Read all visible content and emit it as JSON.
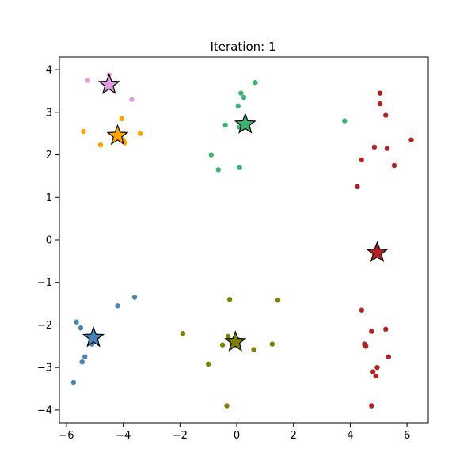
{
  "chart_data": {
    "type": "scatter",
    "title": "Iteration: 1",
    "xlim": [
      -6.25,
      6.75
    ],
    "ylim": [
      -4.3,
      4.3
    ],
    "xticks": [
      -6,
      -4,
      -2,
      0,
      2,
      4,
      6
    ],
    "yticks": [
      -4,
      -3,
      -2,
      -1,
      0,
      1,
      2,
      3,
      4
    ],
    "xtick_labels": [
      "−6",
      "−4",
      "−2",
      "0",
      "2",
      "4",
      "6"
    ],
    "ytick_labels": [
      "−4",
      "−3",
      "−2",
      "−1",
      "0",
      "1",
      "2",
      "3",
      "4"
    ],
    "clusters": [
      {
        "color": "#dda0dd",
        "centroid": [
          -4.5,
          3.65
        ],
        "points": [
          [
            -5.25,
            3.75
          ],
          [
            -4.5,
            3.88
          ],
          [
            -3.7,
            3.3
          ]
        ]
      },
      {
        "color": "#ffa500",
        "centroid": [
          -4.2,
          2.45
        ],
        "points": [
          [
            -5.4,
            2.55
          ],
          [
            -4.8,
            2.23
          ],
          [
            -4.05,
            2.85
          ],
          [
            -4.0,
            2.35
          ],
          [
            -3.95,
            2.28
          ],
          [
            -3.4,
            2.5
          ],
          [
            -4.15,
            2.4
          ]
        ]
      },
      {
        "color": "#3cb371",
        "centroid": [
          0.3,
          2.72
        ],
        "points": [
          [
            -0.9,
            2.0
          ],
          [
            -0.65,
            1.65
          ],
          [
            -0.4,
            2.7
          ],
          [
            0.05,
            3.15
          ],
          [
            0.1,
            2.65
          ],
          [
            0.15,
            3.45
          ],
          [
            0.25,
            3.35
          ],
          [
            0.65,
            3.7
          ],
          [
            0.1,
            1.7
          ],
          [
            3.8,
            2.8
          ]
        ]
      },
      {
        "color": "#b22222",
        "centroid": [
          4.95,
          -0.3
        ],
        "points": [
          [
            5.05,
            3.45
          ],
          [
            5.05,
            3.2
          ],
          [
            5.25,
            2.93
          ],
          [
            4.85,
            2.18
          ],
          [
            5.3,
            2.15
          ],
          [
            4.4,
            1.88
          ],
          [
            5.55,
            1.75
          ],
          [
            4.25,
            1.25
          ],
          [
            6.15,
            2.35
          ],
          [
            4.4,
            -1.65
          ],
          [
            4.75,
            -2.15
          ],
          [
            5.25,
            -2.1
          ],
          [
            4.5,
            -2.45
          ],
          [
            4.55,
            -2.5
          ],
          [
            5.35,
            -2.75
          ],
          [
            4.95,
            -3.0
          ],
          [
            4.8,
            -3.1
          ],
          [
            4.9,
            -3.2
          ],
          [
            4.75,
            -3.9
          ]
        ]
      },
      {
        "color": "#4682b4",
        "centroid": [
          -5.05,
          -2.3
        ],
        "points": [
          [
            -4.2,
            -1.55
          ],
          [
            -3.6,
            -1.35
          ],
          [
            -5.65,
            -1.93
          ],
          [
            -5.5,
            -2.07
          ],
          [
            -5.1,
            -2.45
          ],
          [
            -5.35,
            -2.75
          ],
          [
            -5.45,
            -2.87
          ],
          [
            -5.75,
            -3.35
          ]
        ]
      },
      {
        "color": "#808000",
        "centroid": [
          -0.05,
          -2.4
        ],
        "points": [
          [
            -0.25,
            -1.4
          ],
          [
            1.45,
            -1.42
          ],
          [
            -1.9,
            -2.2
          ],
          [
            -0.3,
            -2.27
          ],
          [
            -0.5,
            -2.47
          ],
          [
            0.6,
            -2.58
          ],
          [
            1.25,
            -2.45
          ],
          [
            -1.0,
            -2.92
          ],
          [
            0.05,
            -2.35
          ],
          [
            -0.35,
            -3.9
          ]
        ]
      }
    ]
  }
}
